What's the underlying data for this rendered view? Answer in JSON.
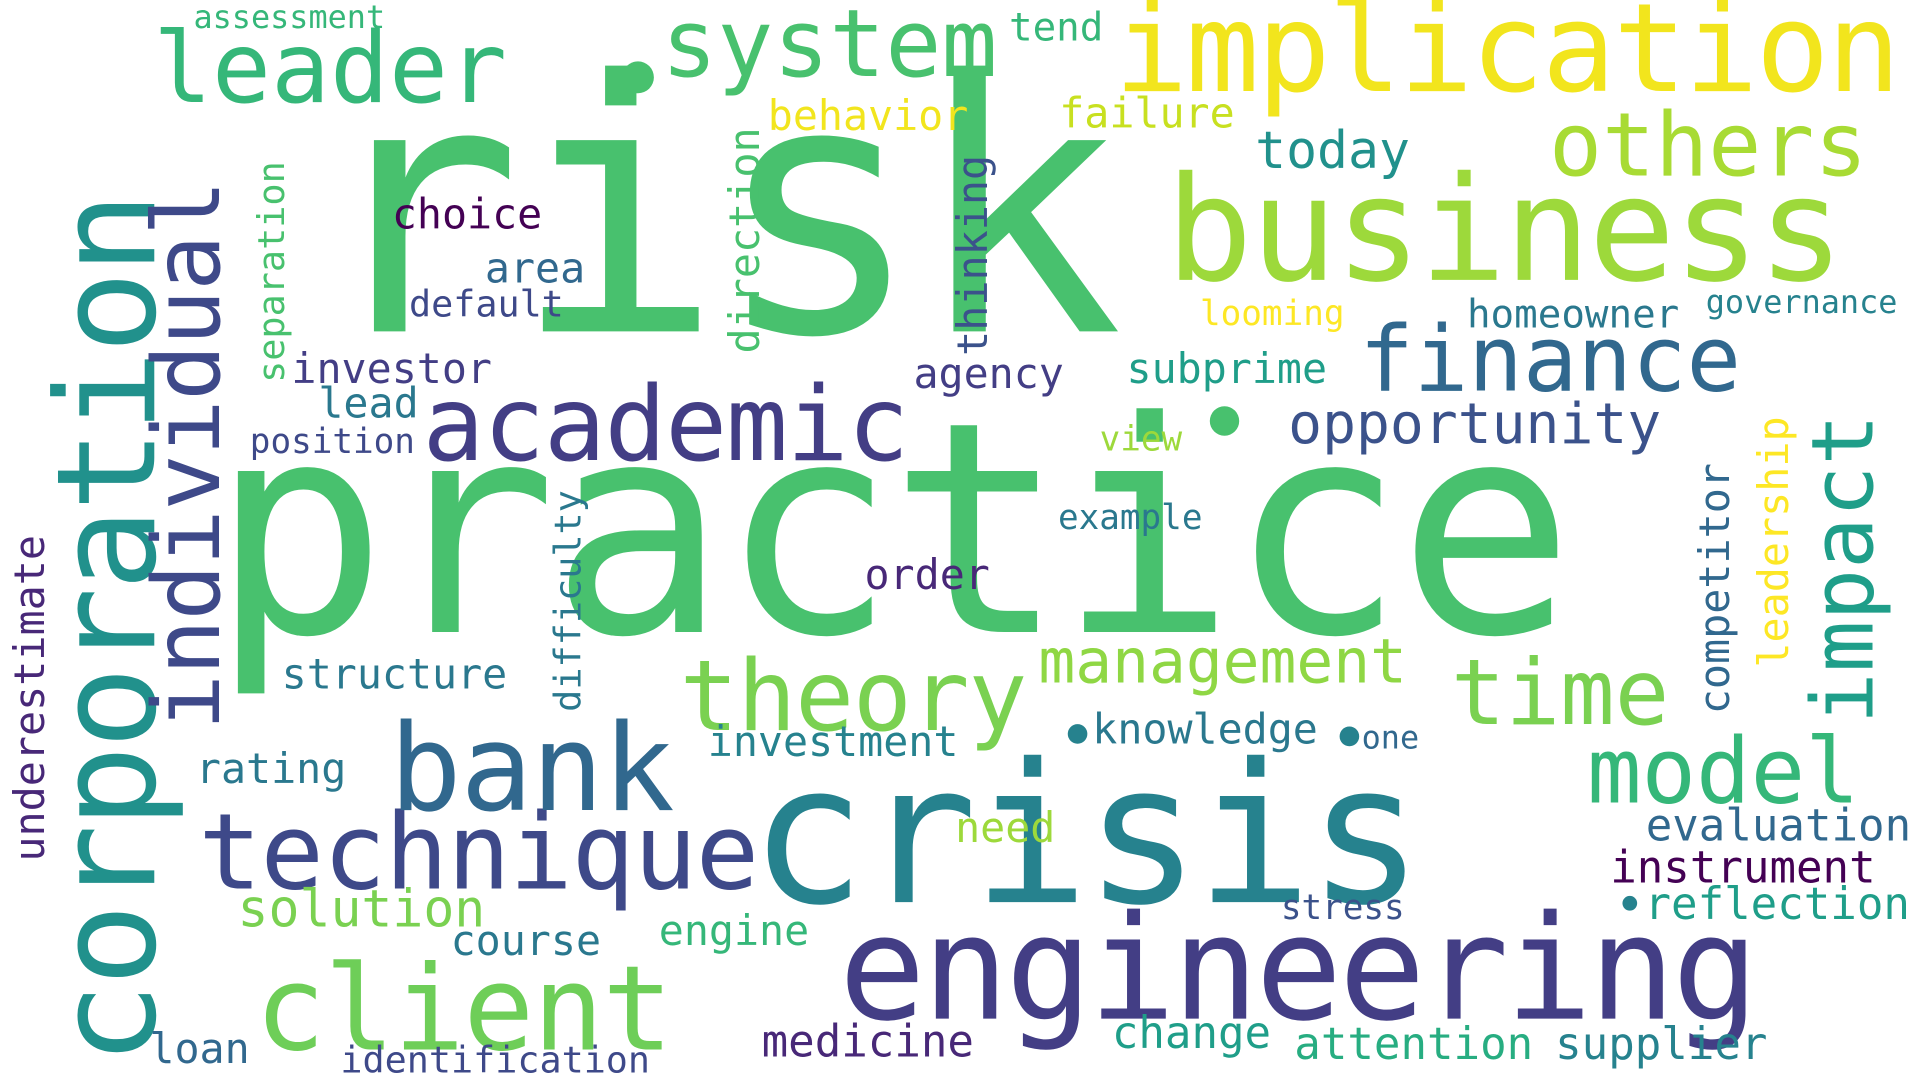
{
  "cloud": {
    "words": {
      "risk": "risk",
      "practice": "practice",
      "crisis": "crisis",
      "engineering": "engineering",
      "corporation": "corporation",
      "business": "business",
      "implication": "implication",
      "academic": "academic",
      "technique": "technique",
      "bank": "bank",
      "client": "client",
      "theory": "theory",
      "individual": "individual",
      "leader": "leader",
      "system": "system",
      "others": "others",
      "finance": "finance",
      "time": "time",
      "model": "model",
      "impact": "impact",
      "management": "management",
      "opportunity": "opportunity",
      "solution": "solution",
      "today": "today",
      "investment": "investment",
      "structure": "structure",
      "medicine": "medicine",
      "change": "change",
      "attention": "attention",
      "supplier": "supplier",
      "evaluation": "evaluation",
      "instrument": "instrument",
      "reflection": "reflection",
      "course": "course",
      "engine": "engine",
      "loan": "loan",
      "identification": "identification",
      "rating": "rating",
      "need": "need",
      "knowledge": "knowledge",
      "one": "one",
      "order": "order",
      "example": "example",
      "stress": "stress",
      "view": "view",
      "subprime": "subprime",
      "agency": "agency",
      "investor": "investor",
      "lead": "lead",
      "position": "position",
      "area": "area",
      "default": "default",
      "choice": "choice",
      "behavior": "behavior",
      "failure": "failure",
      "tend": "tend",
      "assessment": "assessment",
      "homeowner": "homeowner",
      "governance": "governance",
      "looming": "looming",
      "separation": "separation",
      "direction": "direction",
      "thinking": "thinking",
      "difficulty": "difficulty",
      "competitor": "competitor",
      "leadership": "leadership",
      "underestimate": "underestimate"
    },
    "colors": {
      "viridis_purple": "#440154",
      "indigo": "#3e4989",
      "blue": "#31688e",
      "teal": "#26828e",
      "teal_green": "#1f9e89",
      "green": "#35b779",
      "mid_green": "#48c16e",
      "light_green": "#6ece58",
      "lime": "#b5de2b",
      "yellow": "#fde725"
    }
  }
}
